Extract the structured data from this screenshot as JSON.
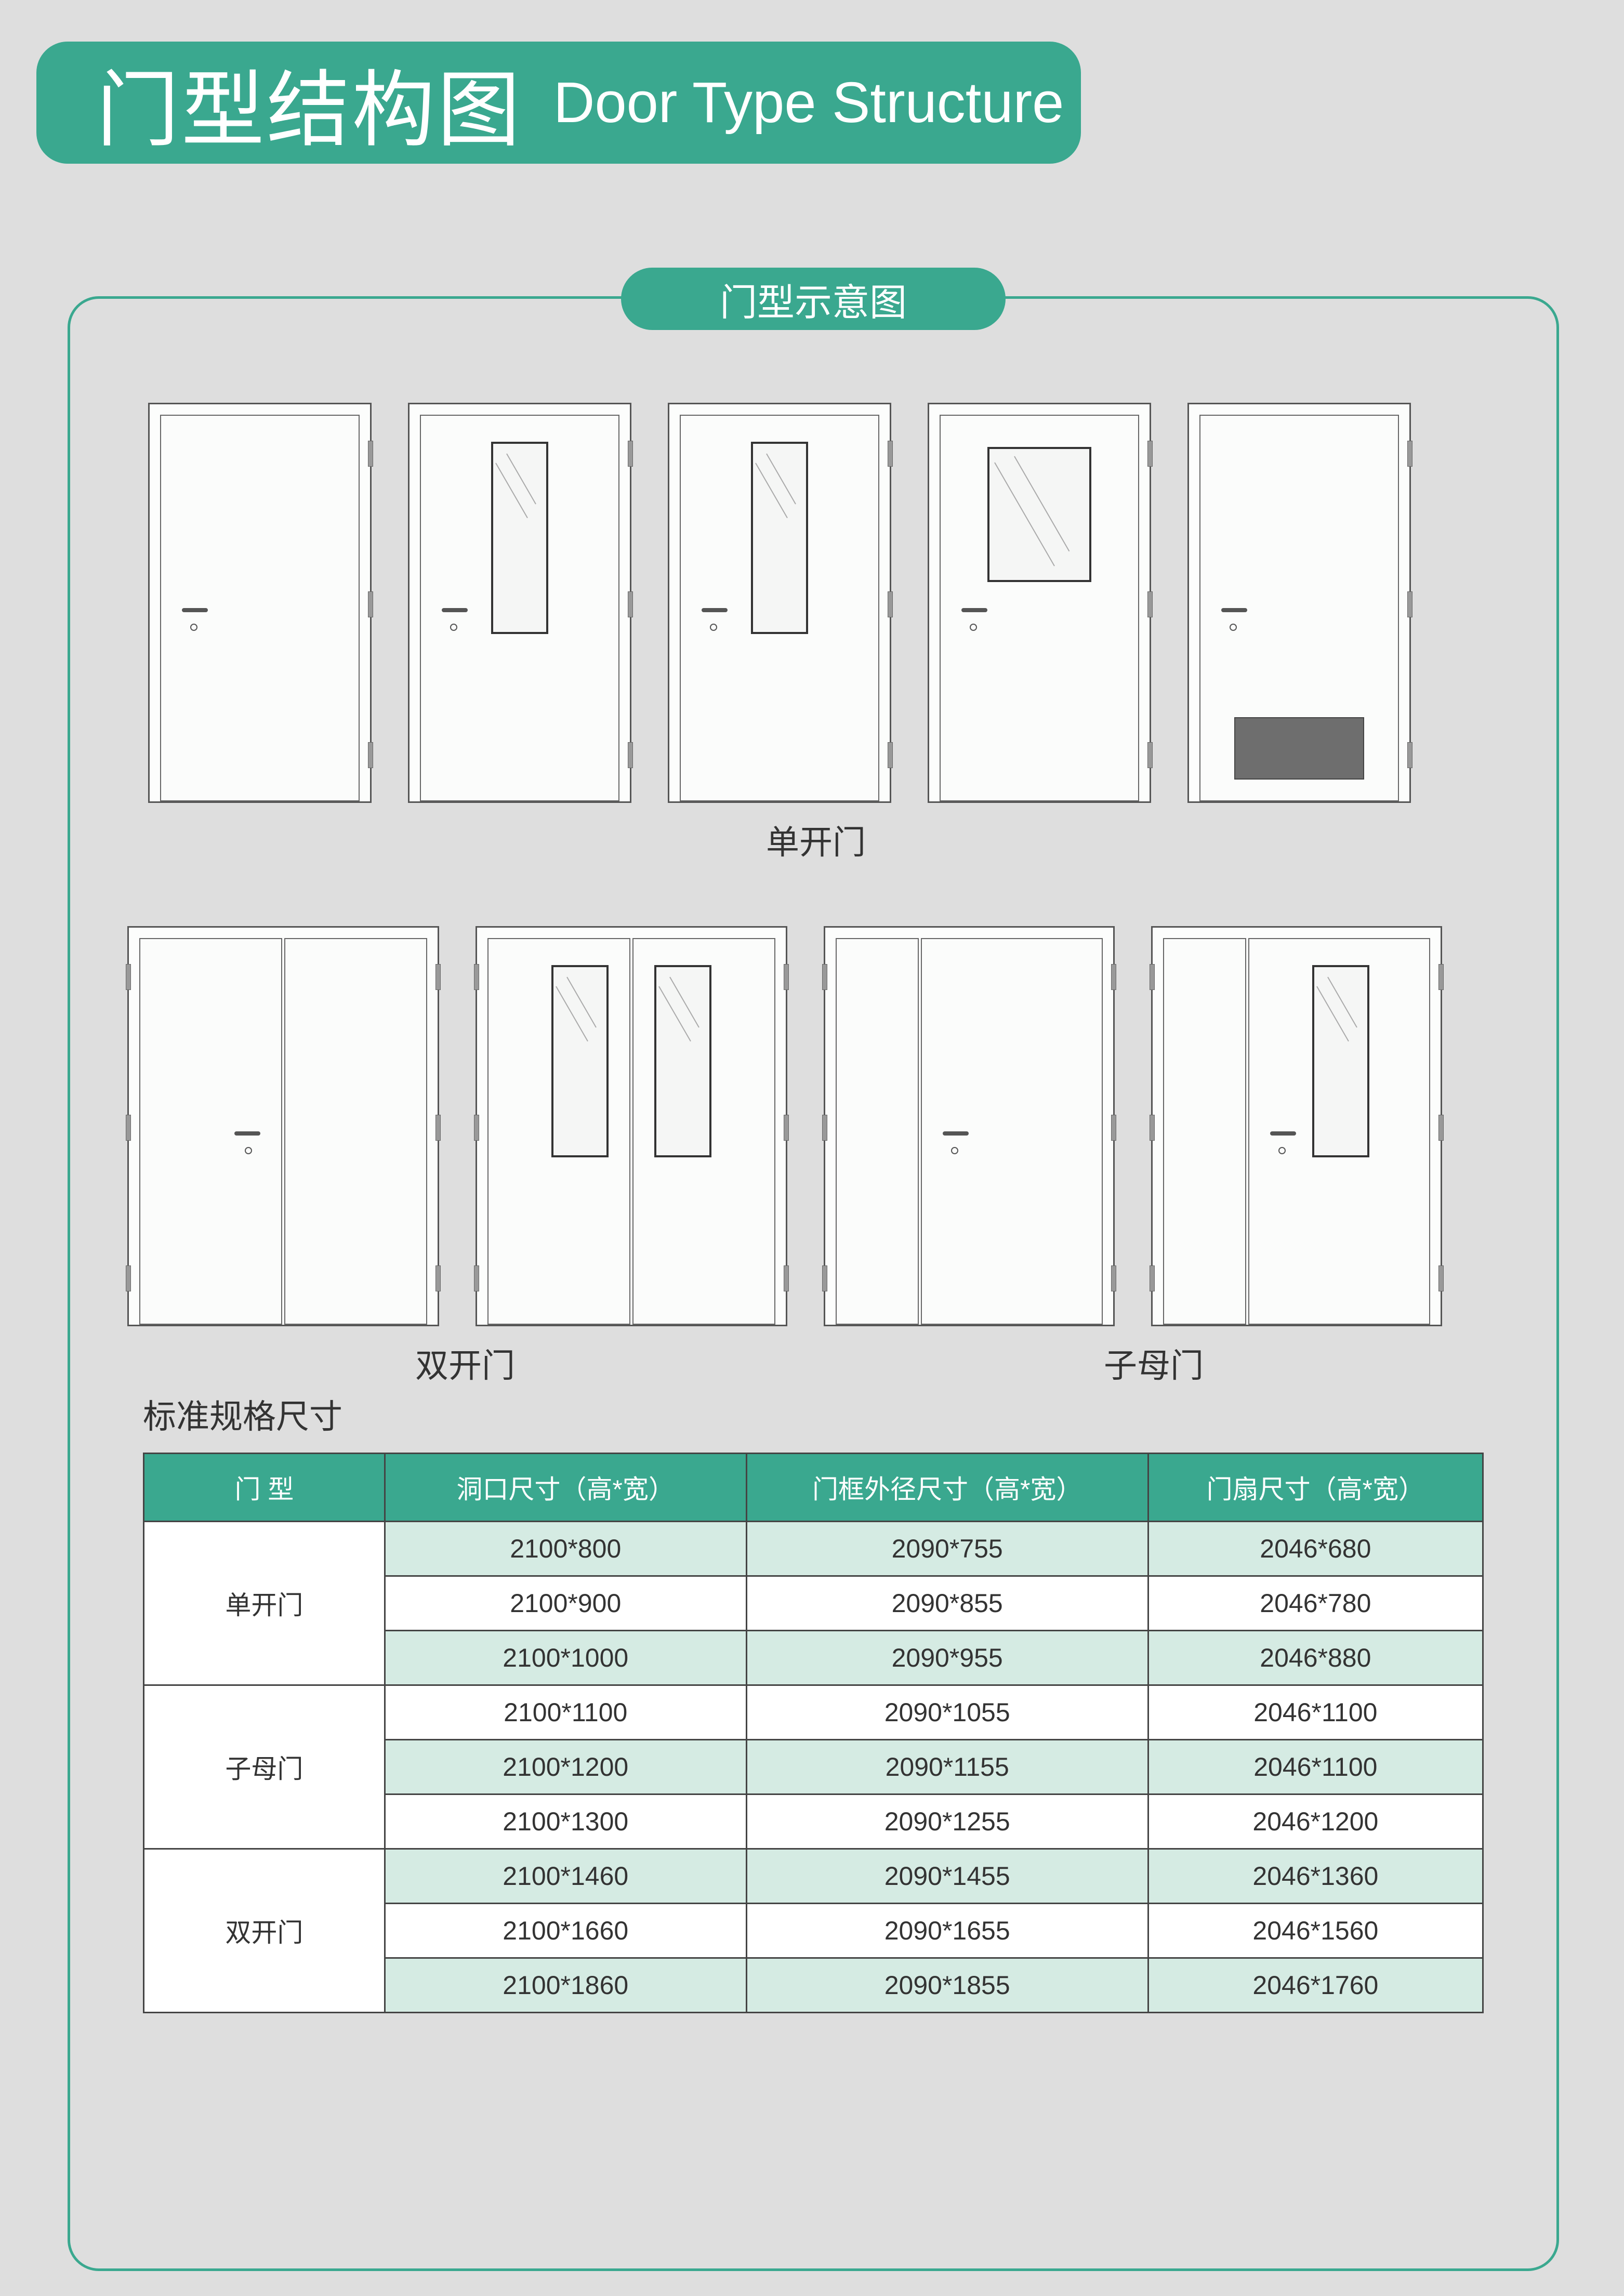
{
  "colors": {
    "accent": "#3aa88f",
    "page_bg": "#dedede",
    "row_alt": "#d5ebe3",
    "row_base": "#ffffff",
    "border": "#444444",
    "text": "#333333",
    "title_text": "#ffffff"
  },
  "title": {
    "cn": "门型结构图",
    "en": "Door Type Structure"
  },
  "subtitle": "门型示意图",
  "door_labels": {
    "single": "单开门",
    "double": "双开门",
    "mother": "子母门"
  },
  "doors_row1": [
    {
      "type": "single",
      "window": null,
      "kickplate": false
    },
    {
      "type": "single",
      "window": "narrow",
      "kickplate": false
    },
    {
      "type": "single",
      "window": "narrow_split",
      "kickplate": false
    },
    {
      "type": "single",
      "window": "square",
      "kickplate": false
    },
    {
      "type": "single",
      "window": null,
      "kickplate": true
    }
  ],
  "doors_row2": [
    {
      "type": "double",
      "window": null
    },
    {
      "type": "double",
      "window": "narrow_both"
    },
    {
      "type": "mother",
      "window": null
    },
    {
      "type": "mother",
      "window": "narrow_wide"
    }
  ],
  "spec_heading": "标准规格尺寸",
  "table": {
    "columns": [
      "门  型",
      "洞口尺寸（高*宽）",
      "门框外径尺寸（高*宽）",
      "门扇尺寸（高*宽）"
    ],
    "col_widths_pct": [
      18,
      27,
      30,
      25
    ],
    "header_bg": "#3aa88f",
    "row_alt_bg": "#d5ebe3",
    "groups": [
      {
        "label": "单开门",
        "rows": [
          [
            "2100*800",
            "2090*755",
            "2046*680"
          ],
          [
            "2100*900",
            "2090*855",
            "2046*780"
          ],
          [
            "2100*1000",
            "2090*955",
            "2046*880"
          ]
        ]
      },
      {
        "label": "子母门",
        "rows": [
          [
            "2100*1100",
            "2090*1055",
            "2046*1100"
          ],
          [
            "2100*1200",
            "2090*1155",
            "2046*1100"
          ],
          [
            "2100*1300",
            "2090*1255",
            "2046*1200"
          ]
        ]
      },
      {
        "label": "双开门",
        "rows": [
          [
            "2100*1460",
            "2090*1455",
            "2046*1360"
          ],
          [
            "2100*1660",
            "2090*1655",
            "2046*1560"
          ],
          [
            "2100*1860",
            "2090*1855",
            "2046*1760"
          ]
        ]
      }
    ]
  }
}
